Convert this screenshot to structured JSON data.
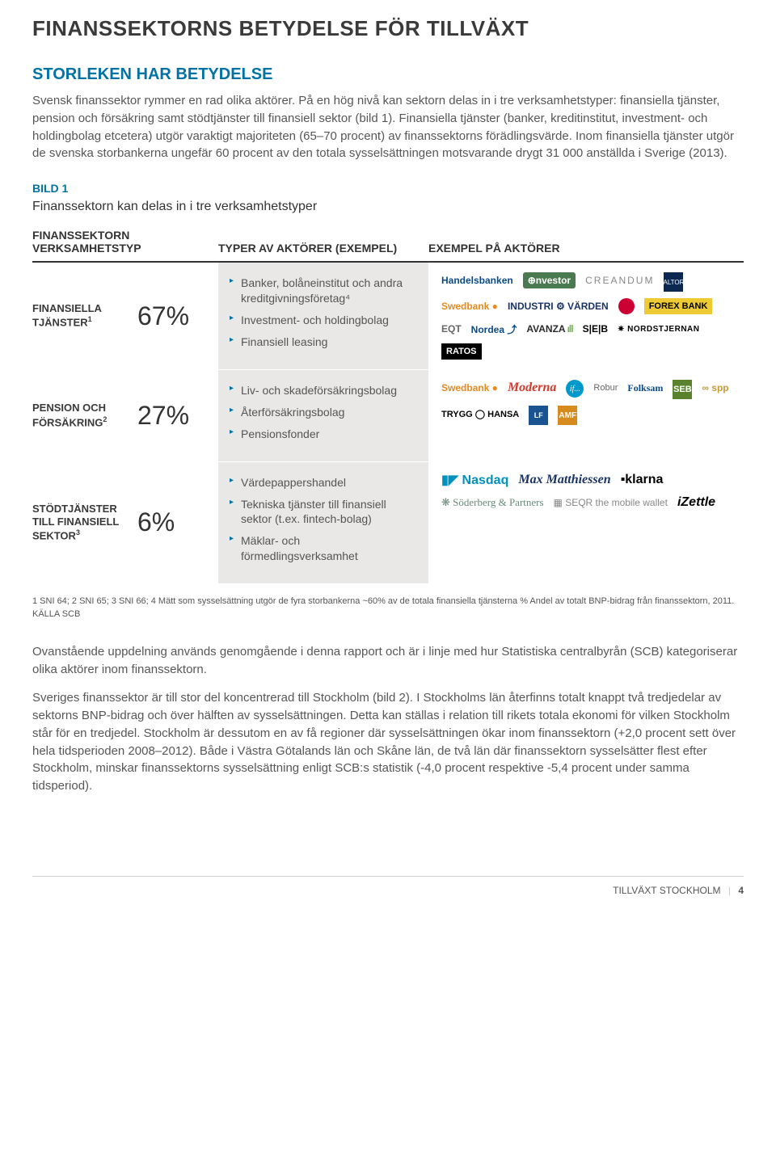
{
  "page_title": "FINANSSEKTORNS BETYDELSE FÖR TILLVÄXT",
  "subheading": "STORLEKEN HAR BETYDELSE",
  "intro_text": "Svensk finanssektor rymmer en rad olika aktörer. På en hög nivå kan sektorn delas in i tre verksamhetstyper: finansiella tjänster, pension och försäkring samt stödtjänster till finansiell sektor (bild 1). Finansiella tjänster (banker, kreditinstitut, investment- och holdingbolag etcetera) utgör varaktigt majoriteten (65–70 procent) av finanssektorns förädlingsvärde. Inom finansiella tjänster utgör de svenska storbankerna ungefär 60 procent av den totala sysselsättningen motsvarande drygt 31 000 anställda i Sverige (2013).",
  "bild": {
    "label": "BILD 1",
    "title": "Finanssektorn kan delas in i tre verksamhetstyper",
    "header_col1_line1": "FINANSSEKTORN",
    "header_col1_line2": "VERKSAMHETSTYP",
    "header_col2": "TYPER AV AKTÖRER (EXEMPEL)",
    "header_col3": "EXEMPEL PÅ AKTÖRER",
    "row_bg_alt": "#e9e8e6",
    "bullet_color": "#0072a6",
    "accent_color": "#0072a6",
    "border_color": "#333333",
    "rows": [
      {
        "label_html": "FINANSIELLA TJÄNSTER",
        "sup": "1",
        "pct": "67%",
        "bullets": [
          "Banker, bolåneinstitut och andra kreditgivningsföretag⁴",
          "Investment- och holdingbolag",
          "Finansiell leasing"
        ],
        "logos": [
          {
            "text": "Handelsbanken",
            "cls": "logo-blue"
          },
          {
            "text": "⊕nvestor",
            "cls": "logo-dkblue",
            "bg": "#4a7a50",
            "color": "#fff",
            "pad": true
          },
          {
            "text": "CREANDUM",
            "cls": "logo-gray"
          },
          {
            "type": "square-navy",
            "text": "ALTOR"
          },
          {
            "text": "Swedbank ●",
            "cls": "logo-orange"
          },
          {
            "text": "INDUSTRI ⚙ VÄRDEN",
            "cls": "logo-navy"
          },
          {
            "type": "circle-red"
          },
          {
            "text": "FOREX BANK",
            "cls": "logo-blk-box",
            "style": "background:#eecb34;color:#000;"
          },
          {
            "text": "EQT",
            "cls": "logo-black",
            "style": "color:#666;"
          },
          {
            "text": "Nordea ⤴",
            "cls": "logo-blue"
          },
          {
            "text": "AVANZA",
            "cls": "logo-black bars-green",
            "style": "color:#2a2a2a;"
          },
          {
            "text": "S|E|B",
            "cls": "logo-black"
          },
          {
            "text": "✷ NORDSTJERNAN",
            "cls": "logo-black",
            "style": "font-size:10px;letter-spacing:0.5px;"
          },
          {
            "text": "RATOS",
            "cls": "logo-blk-box"
          }
        ]
      },
      {
        "label_html": "PENSION OCH FÖRSÄKRING",
        "sup": "2",
        "pct": "27%",
        "bullets": [
          "Liv- och skadeförsäkringsbolag",
          "Återförsäkringsbolag",
          "Pensionsfonder"
        ],
        "logos": [
          {
            "text": "Swedbank ●",
            "cls": "logo-orange"
          },
          {
            "text": "Moderna",
            "cls": "logo-red",
            "style": "font-family:Georgia,serif;font-style:italic;font-size:16px;"
          },
          {
            "type": "circle-blue",
            "text": "if..."
          },
          {
            "text": "Robur",
            "cls": "",
            "style": "color:#666;font-size:11px;"
          },
          {
            "text": "Folksam",
            "cls": "logo-blue",
            "style": "font-family:Georgia,serif;"
          },
          {
            "type": "square-green",
            "text": "SEB"
          },
          {
            "text": "∞ spp",
            "cls": "logo-red",
            "style": "color:#c93;"
          },
          {
            "text": "TRYGG ◯ HANSA",
            "cls": "logo-black",
            "style": "font-size:11px;"
          },
          {
            "type": "square-blue",
            "text": "LF"
          },
          {
            "type": "square-orange",
            "text": "AMF"
          }
        ]
      },
      {
        "label_html": "STÖDTJÄNSTER TILL FINANSIELL SEKTOR",
        "sup": "3",
        "pct": "6%",
        "bullets": [
          "Värdepappershandel",
          "Tekniska tjänster till finansiell sektor (t.ex. fintech-bolag)",
          "Mäklar- och förmedlingsverksamhet"
        ],
        "logos": [
          {
            "text": "▮◤ Nasdaq",
            "cls": "logo-blue",
            "style": "color:#0092bc;font-size:16px;"
          },
          {
            "text": "Max Matthiessen",
            "cls": "logo-navy",
            "style": "font-style:italic;font-size:16px;font-family:Georgia,serif;"
          },
          {
            "text": "▪klarna",
            "cls": "logo-black",
            "style": "font-size:16px;"
          },
          {
            "text": "❋ Söderberg & Partners",
            "cls": "logo-greengray",
            "style": "font-size:13px;"
          },
          {
            "text": "▦ SEQR the mobile wallet",
            "cls": "logo-teal",
            "style": "font-size:12px;color:#888;"
          },
          {
            "text": "iZettle",
            "cls": "logo-black",
            "style": "font-style:italic;font-size:16px;"
          }
        ]
      }
    ],
    "footnote": "1 SNI 64; 2 SNI 65; 3 SNI 66; 4 Mätt som sysselsättning utgör de fyra storbankerna ~60% av de totala finansiella tjänsterna % Andel av totalt BNP-bidrag från finanssektorn, 2011. KÄLLA SCB"
  },
  "body_paragraphs": [
    "Ovanstående uppdelning används genomgående i denna rapport och är i linje med hur Statistiska centralbyrån (SCB) kategoriserar olika aktörer inom finanssektorn.",
    "Sveriges finanssektor är till stor del koncentrerad till Stockholm (bild 2). I Stockholms län återfinns totalt knappt två tredjedelar av sektorns BNP-bidrag och över hälften av sysselsättningen. Detta kan ställas i relation till rikets totala ekonomi för vilken Stockholm står för en tredjedel. Stockholm är dessutom en av få regioner där sysselsättningen ökar inom finanssektorn (+2,0 procent sett över hela tidsperioden 2008–2012). Både i Västra Götalands län och Skåne län, de två län där finanssektorn sysselsätter flest efter Stockholm, minskar finanssektorns sysselsättning enligt SCB:s statistik (-4,0 procent respektive -5,4 procent under samma tidsperiod)."
  ],
  "footer_label": "TILLVÄXT STOCKHOLM",
  "footer_page": "4",
  "colors": {
    "heading_accent": "#0072a6",
    "body_text": "#575757",
    "rule": "#333333"
  },
  "fontsizes": {
    "h1": 26,
    "h2": 20,
    "body": 15,
    "table_label": 13,
    "pct": 32,
    "footnote": 11
  }
}
